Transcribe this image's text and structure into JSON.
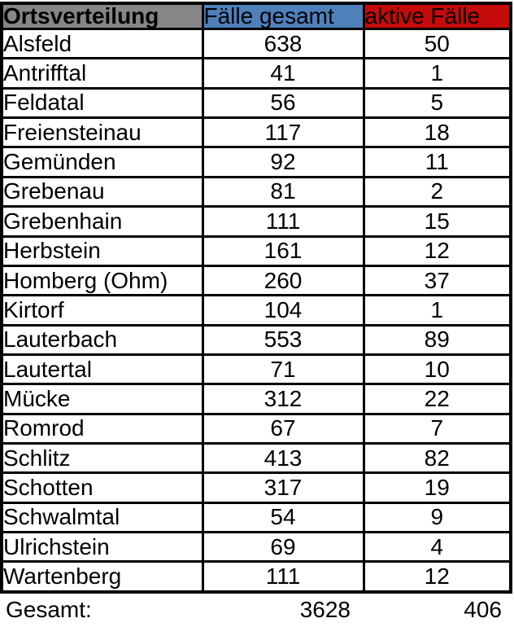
{
  "colors": {
    "header_gray": "#868686",
    "header_blue": "#4E80BC",
    "header_red": "#C50A0A",
    "border": "#000000",
    "background": "#ffffff",
    "text": "#000000"
  },
  "table": {
    "header": [
      {
        "label": "Ortsverteilung",
        "bg": "#868686"
      },
      {
        "label": "Fälle gesamt",
        "bg": "#4E80BC"
      },
      {
        "label": "aktive Fälle",
        "bg": "#C50A0A"
      }
    ],
    "rows": [
      [
        "Alsfeld",
        "638",
        "50"
      ],
      [
        "Antrifftal",
        "41",
        "1"
      ],
      [
        "Feldatal",
        "56",
        "5"
      ],
      [
        "Freiensteinau",
        "117",
        "18"
      ],
      [
        "Gemünden",
        "92",
        "11"
      ],
      [
        "Grebenau",
        "81",
        "2"
      ],
      [
        "Grebenhain",
        "111",
        "15"
      ],
      [
        "Herbstein",
        "161",
        "12"
      ],
      [
        "Homberg (Ohm)",
        "260",
        "37"
      ],
      [
        "Kirtorf",
        "104",
        "1"
      ],
      [
        "Lauterbach",
        "553",
        "89"
      ],
      [
        "Lautertal",
        "71",
        "10"
      ],
      [
        "Mücke",
        "312",
        "22"
      ],
      [
        "Romrod",
        "67",
        "7"
      ],
      [
        "Schlitz",
        "413",
        "82"
      ],
      [
        "Schotten",
        "317",
        "19"
      ],
      [
        "Schwalmtal",
        "54",
        "9"
      ],
      [
        "Ulrichstein",
        "69",
        "4"
      ],
      [
        "Wartenberg",
        "111",
        "12"
      ]
    ],
    "totals": {
      "label": "Gesamt:",
      "gesamt": "3628",
      "aktiv": "406"
    }
  },
  "chart_data": {
    "type": "table",
    "title": "Ortsverteilung",
    "categories": [
      "Alsfeld",
      "Antrifftal",
      "Feldatal",
      "Freiensteinau",
      "Gemünden",
      "Grebenau",
      "Grebenhain",
      "Herbstein",
      "Homberg (Ohm)",
      "Kirtorf",
      "Lauterbach",
      "Lautertal",
      "Mücke",
      "Romrod",
      "Schlitz",
      "Schotten",
      "Schwalmtal",
      "Ulrichstein",
      "Wartenberg"
    ],
    "series": [
      {
        "name": "Fälle gesamt",
        "values": [
          638,
          41,
          56,
          117,
          92,
          81,
          111,
          161,
          260,
          104,
          553,
          71,
          312,
          67,
          413,
          317,
          54,
          69,
          111
        ]
      },
      {
        "name": "aktive Fälle",
        "values": [
          50,
          1,
          5,
          18,
          11,
          2,
          15,
          12,
          37,
          1,
          89,
          10,
          22,
          7,
          82,
          19,
          9,
          4,
          12
        ]
      }
    ],
    "totals": {
      "label": "Gesamt:",
      "Fälle gesamt": 3628,
      "aktive Fälle": 406
    }
  }
}
